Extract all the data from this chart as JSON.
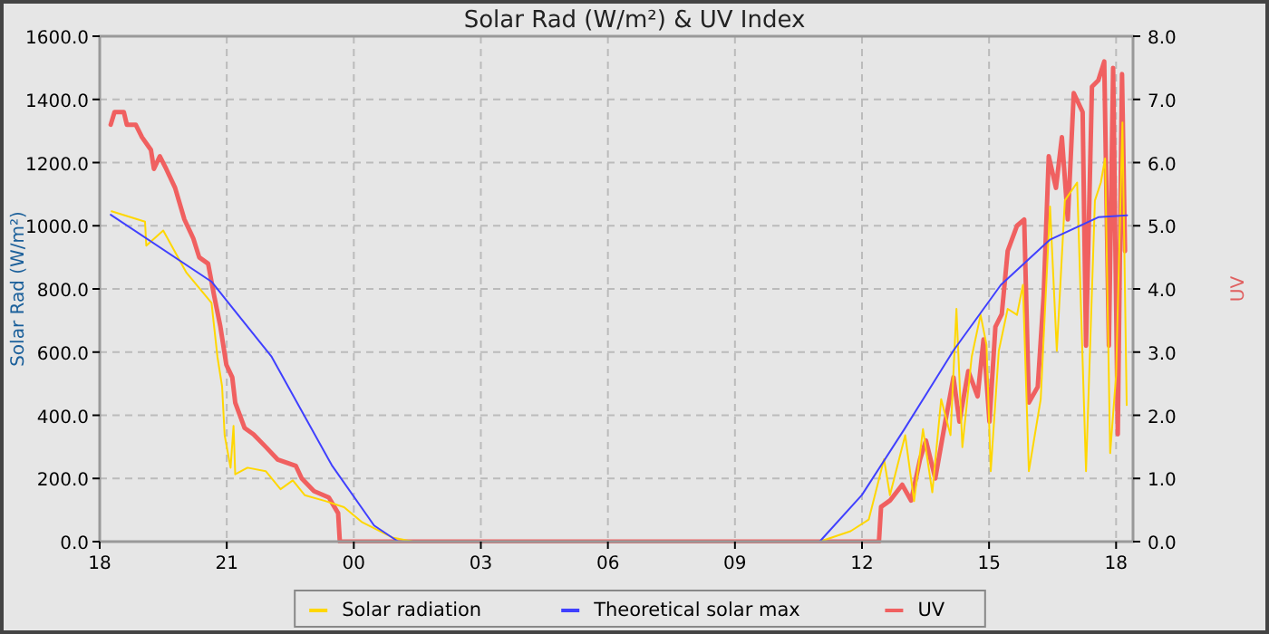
{
  "chart_data": {
    "type": "line",
    "title": "Solar Rad (W/m²) &  UV Index",
    "ylabel": "Solar Rad (W/m²)",
    "y2label": "UV",
    "xlim": [
      18,
      42.4
    ],
    "xticks": [
      {
        "value": 18,
        "label": "18"
      },
      {
        "value": 21,
        "label": "21"
      },
      {
        "value": 24,
        "label": "00"
      },
      {
        "value": 27,
        "label": "03"
      },
      {
        "value": 30,
        "label": "06"
      },
      {
        "value": 33,
        "label": "09"
      },
      {
        "value": 36,
        "label": "12"
      },
      {
        "value": 39,
        "label": "15"
      },
      {
        "value": 42,
        "label": "18"
      }
    ],
    "ylim": [
      0,
      1600
    ],
    "yticks": [
      {
        "value": 0,
        "label": "0.0"
      },
      {
        "value": 200,
        "label": "200.0"
      },
      {
        "value": 400,
        "label": "400.0"
      },
      {
        "value": 600,
        "label": "600.0"
      },
      {
        "value": 800,
        "label": "800.0"
      },
      {
        "value": 1000,
        "label": "1000.0"
      },
      {
        "value": 1200,
        "label": "1200.0"
      },
      {
        "value": 1400,
        "label": "1400.0"
      },
      {
        "value": 1600,
        "label": "1600.0"
      }
    ],
    "y2lim": [
      0,
      8
    ],
    "y2ticks": [
      {
        "value": 0,
        "label": "0.0"
      },
      {
        "value": 1,
        "label": "1.0"
      },
      {
        "value": 2,
        "label": "2.0"
      },
      {
        "value": 3,
        "label": "3.0"
      },
      {
        "value": 4,
        "label": "4.0"
      },
      {
        "value": 5,
        "label": "5.0"
      },
      {
        "value": 6,
        "label": "6.0"
      },
      {
        "value": 7,
        "label": "7.0"
      },
      {
        "value": 8,
        "label": "8.0"
      }
    ],
    "grid": true,
    "legend": "bottom",
    "line_style": "solid",
    "marker": "none",
    "series": [
      {
        "name": "Solar radiation",
        "color": "#ffd700",
        "x": [
          18.28,
          19.07,
          19.1,
          19.5,
          20.05,
          20.64,
          20.78,
          20.89,
          20.95,
          21.09,
          21.16,
          21.2,
          21.49,
          21.92,
          22.27,
          22.56,
          22.84,
          23.34,
          23.77,
          24.2,
          24.91,
          25.4,
          30,
          35.0,
          35.73,
          36.16,
          36.52,
          36.66,
          37.02,
          37.23,
          37.44,
          37.66,
          37.87,
          38.09,
          38.23,
          38.37,
          38.59,
          38.8,
          38.94,
          39.04,
          39.23,
          39.44,
          39.66,
          39.8,
          39.94,
          40.22,
          40.44,
          40.6,
          40.79,
          41.08,
          41.29,
          41.5,
          41.64,
          41.74,
          41.86,
          42.0,
          42.15,
          42.25
        ],
        "values": [
          1046,
          1013,
          937,
          985,
          851,
          756,
          585,
          491,
          337,
          234,
          366,
          213,
          234,
          223,
          166,
          194,
          147,
          128,
          109,
          61,
          13,
          0,
          0,
          0,
          33,
          70,
          261,
          147,
          337,
          128,
          356,
          156,
          451,
          337,
          737,
          299,
          585,
          718,
          623,
          223,
          604,
          737,
          718,
          813,
          223,
          451,
          1061,
          604,
          1080,
          1137,
          223,
          1080,
          1137,
          1213,
          280,
          527,
          1327,
          432
        ]
      },
      {
        "name": "Theoretical solar max",
        "color": "#4040ff",
        "x": [
          18.26,
          20.64,
          22.06,
          23.48,
          24.48,
          25.05,
          35.0,
          36.0,
          37.0,
          38.16,
          39.28,
          40.44,
          41.58,
          42.26
        ],
        "values": [
          1035,
          823,
          585,
          242,
          51,
          0,
          0,
          148,
          356,
          605,
          813,
          956,
          1027,
          1033
        ]
      },
      {
        "name": "UV",
        "color": "#f06060",
        "axis": "y2",
        "x": [
          18.26,
          18.35,
          18.57,
          18.64,
          18.85,
          19.0,
          19.21,
          19.28,
          19.42,
          19.57,
          19.78,
          20.0,
          20.21,
          20.35,
          20.56,
          20.7,
          20.85,
          20.99,
          21.13,
          21.2,
          21.42,
          21.63,
          21.92,
          22.2,
          22.63,
          22.77,
          23.06,
          23.41,
          23.63,
          23.67,
          30,
          36.4,
          36.45,
          36.66,
          36.95,
          37.16,
          37.37,
          37.51,
          37.73,
          37.94,
          38.16,
          38.3,
          38.51,
          38.73,
          38.87,
          39.01,
          39.15,
          39.3,
          39.44,
          39.66,
          39.83,
          39.94,
          40.15,
          40.29,
          40.41,
          40.58,
          40.72,
          40.86,
          41.0,
          41.21,
          41.29,
          41.43,
          41.58,
          41.72,
          41.83,
          41.93,
          42.04,
          42.14,
          42.21
        ],
        "values": [
          6.6,
          6.8,
          6.8,
          6.6,
          6.6,
          6.4,
          6.2,
          5.9,
          6.1,
          5.9,
          5.6,
          5.1,
          4.8,
          4.5,
          4.4,
          3.9,
          3.4,
          2.8,
          2.6,
          2.2,
          1.8,
          1.7,
          1.5,
          1.3,
          1.2,
          1.0,
          0.8,
          0.7,
          0.45,
          0,
          0,
          0,
          0.55,
          0.65,
          0.9,
          0.65,
          1.3,
          1.6,
          1.0,
          1.8,
          2.6,
          1.9,
          2.7,
          2.3,
          3.2,
          1.9,
          3.4,
          3.6,
          4.6,
          5.0,
          5.1,
          2.2,
          2.45,
          3.9,
          6.1,
          5.6,
          6.4,
          5.1,
          7.1,
          6.8,
          3.1,
          7.2,
          7.3,
          7.6,
          3.1,
          7.5,
          1.7,
          7.4,
          4.6
        ]
      }
    ]
  }
}
